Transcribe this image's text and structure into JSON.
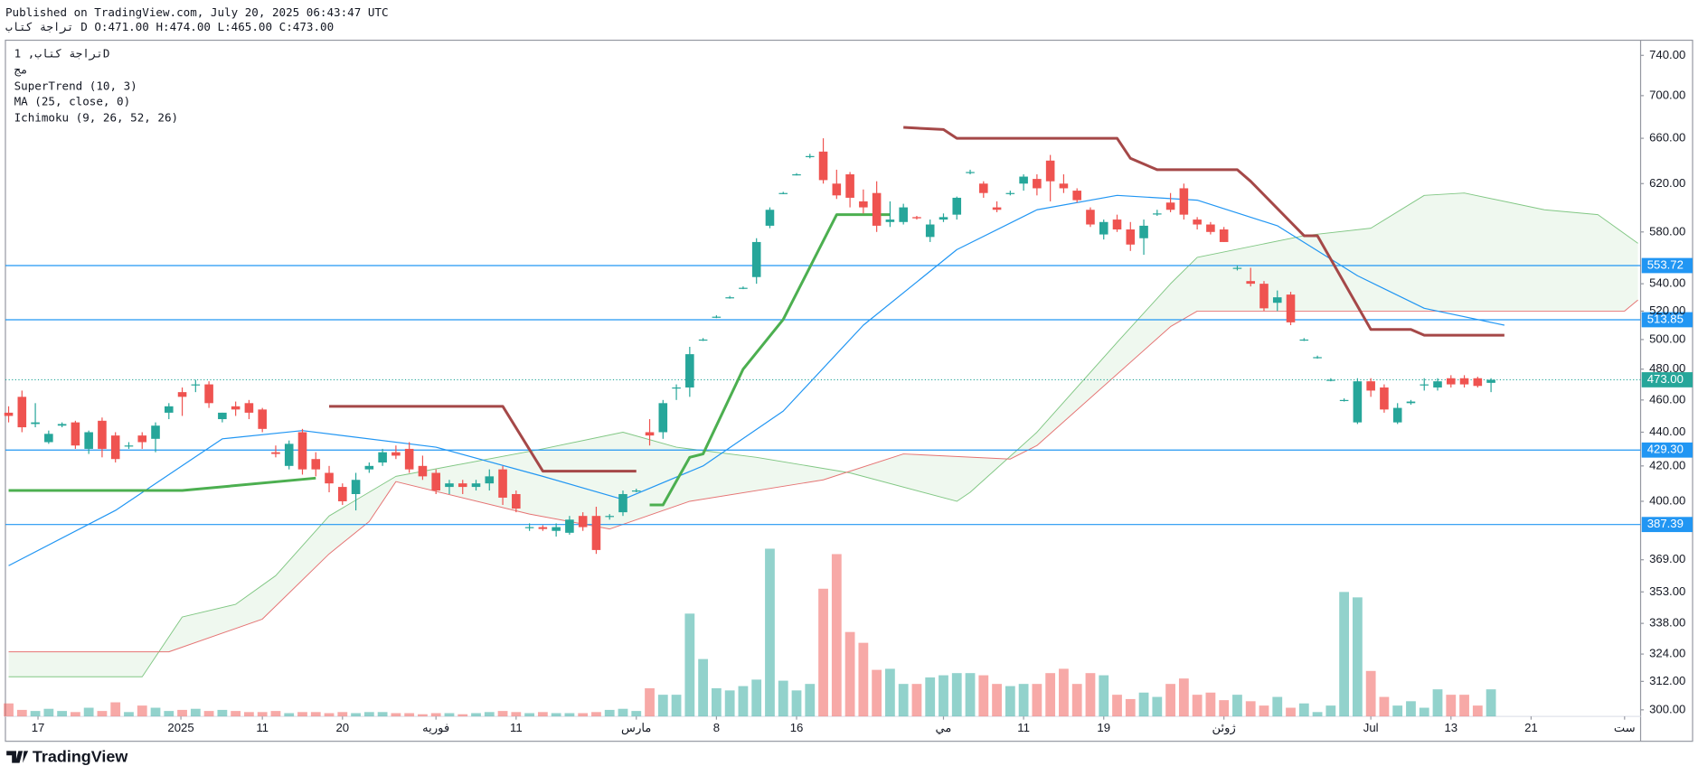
{
  "page": {
    "published": "Published on TradingView.com, July 20, 2025 06:43:47 UTC",
    "ohlc_header": [
      "تراجة كتاب",
      "D",
      "O:471.00",
      "H:474.00",
      "L:465.00",
      "C:473.00"
    ],
    "legend": [
      "تراجة كتاب, 1D",
      "مج",
      "SuperTrend (10, 3)",
      "MA (25, close, 0)",
      "Ichimoku (9, 26, 52, 26)"
    ],
    "logo": "TradingView"
  },
  "chart_data": {
    "type": "candlestick",
    "log_scale": true,
    "grid": false,
    "ylim": [
      297.3,
      755.6
    ],
    "yticks": [
      {
        "value": 740,
        "label": "740.00"
      },
      {
        "value": 700,
        "label": "700.00"
      },
      {
        "value": 660,
        "label": "660.00"
      },
      {
        "value": 620,
        "label": "620.00"
      },
      {
        "value": 580,
        "label": "580.00"
      },
      {
        "value": 540,
        "label": "540.00"
      },
      {
        "value": 520,
        "label": "520.00"
      },
      {
        "value": 500,
        "label": "500.00"
      },
      {
        "value": 480,
        "label": "480.00"
      },
      {
        "value": 460,
        "label": "460.00"
      },
      {
        "value": 440,
        "label": "440.00"
      },
      {
        "value": 420,
        "label": "420.00"
      },
      {
        "value": 400,
        "label": "400.00"
      },
      {
        "value": 369,
        "label": "369.00"
      },
      {
        "value": 353,
        "label": "353.00"
      },
      {
        "value": 338,
        "label": "338.00"
      },
      {
        "value": 324,
        "label": "324.00"
      },
      {
        "value": 312,
        "label": "312.00"
      },
      {
        "value": 300,
        "label": "300.00"
      }
    ],
    "xlim": [
      -0.24,
      122.2
    ],
    "xticks": [
      {
        "value": 2.2,
        "label": "17"
      },
      {
        "value": 12.9,
        "label": "2025"
      },
      {
        "value": 19,
        "label": "11"
      },
      {
        "value": 25,
        "label": "20"
      },
      {
        "value": 32,
        "label": "فوريه"
      },
      {
        "value": 38,
        "label": "11"
      },
      {
        "value": 47,
        "label": "مارس"
      },
      {
        "value": 53,
        "label": "8"
      },
      {
        "value": 59,
        "label": "16"
      },
      {
        "value": 70,
        "label": "مي"
      },
      {
        "value": 76,
        "label": "11"
      },
      {
        "value": 82,
        "label": "19"
      },
      {
        "value": 91,
        "label": "ژوئن"
      },
      {
        "value": 102,
        "label": "Jul"
      },
      {
        "value": 108,
        "label": "13"
      },
      {
        "value": 114,
        "label": "21"
      },
      {
        "value": 121,
        "label": "ست"
      }
    ],
    "up_color": "#26a69a",
    "down_color": "#ef5350",
    "ohlc": [
      [
        452,
        456,
        446,
        450
      ],
      [
        462,
        466,
        440,
        443
      ],
      [
        445,
        458,
        443,
        446
      ],
      [
        434,
        441,
        433,
        439
      ],
      [
        444,
        446,
        443,
        445
      ],
      [
        446,
        447,
        430,
        432
      ],
      [
        430,
        441,
        427,
        440
      ],
      [
        447,
        449,
        425,
        430
      ],
      [
        438,
        440,
        422,
        424
      ],
      [
        432,
        434,
        430,
        432
      ],
      [
        438,
        440,
        430,
        434
      ],
      [
        436,
        446,
        428,
        444
      ],
      [
        452,
        458,
        448,
        456
      ],
      [
        465,
        468,
        450,
        462
      ],
      [
        470,
        473,
        465,
        470
      ],
      [
        470,
        472,
        455,
        458
      ],
      [
        448,
        452,
        446,
        452
      ],
      [
        456,
        459,
        450,
        454
      ],
      [
        458,
        460,
        448,
        452
      ],
      [
        454,
        455,
        440,
        442
      ],
      [
        428,
        432,
        425,
        427
      ],
      [
        420,
        435,
        418,
        433
      ],
      [
        440,
        442,
        415,
        418
      ],
      [
        424,
        428,
        414,
        418
      ],
      [
        416,
        420,
        405,
        410
      ],
      [
        408,
        410,
        398,
        400
      ],
      [
        404,
        416,
        395,
        412
      ],
      [
        418,
        422,
        416,
        420
      ],
      [
        422,
        430,
        420,
        428
      ],
      [
        428,
        432,
        424,
        426
      ],
      [
        430,
        434,
        416,
        418
      ],
      [
        420,
        426,
        412,
        414
      ],
      [
        416,
        418,
        404,
        406
      ],
      [
        408,
        412,
        404,
        410
      ],
      [
        410,
        412,
        404,
        408
      ],
      [
        408,
        412,
        406,
        410
      ],
      [
        410,
        418,
        406,
        414
      ],
      [
        418,
        420,
        398,
        402
      ],
      [
        404,
        406,
        394,
        396
      ],
      [
        386,
        388,
        384,
        386
      ],
      [
        386,
        387,
        384,
        385
      ],
      [
        384,
        388,
        381,
        386
      ],
      [
        383,
        392,
        382,
        390
      ],
      [
        392,
        394,
        384,
        386
      ],
      [
        392,
        397,
        372,
        374
      ],
      [
        392,
        393,
        390,
        392
      ],
      [
        394,
        406,
        392,
        404
      ],
      [
        406,
        407,
        405,
        406
      ],
      [
        440,
        448,
        432,
        438
      ],
      [
        440,
        460,
        436,
        458
      ],
      [
        468,
        470,
        460,
        468
      ],
      [
        468,
        495,
        462,
        490
      ],
      [
        500,
        501,
        499,
        500
      ],
      [
        516,
        517,
        515,
        516
      ],
      [
        530,
        531,
        529,
        530
      ],
      [
        537,
        538,
        536,
        537
      ],
      [
        545,
        575,
        540,
        572
      ],
      [
        585,
        600,
        583,
        598
      ],
      [
        612,
        613,
        611,
        612
      ],
      [
        628,
        629,
        627,
        628
      ],
      [
        644,
        646,
        642,
        644
      ],
      [
        648,
        660,
        620,
        623
      ],
      [
        620,
        632,
        607,
        610
      ],
      [
        628,
        630,
        600,
        608
      ],
      [
        605,
        615,
        595,
        600
      ],
      [
        612,
        622,
        580,
        585
      ],
      [
        588,
        605,
        584,
        590
      ],
      [
        588,
        603,
        586,
        600
      ],
      [
        592,
        593,
        590,
        591
      ],
      [
        576,
        590,
        572,
        586
      ],
      [
        590,
        595,
        588,
        592
      ],
      [
        594,
        609,
        590,
        608
      ],
      [
        630,
        632,
        628,
        630
      ],
      [
        620,
        622,
        608,
        612
      ],
      [
        600,
        605,
        596,
        598
      ],
      [
        612,
        614,
        610,
        612
      ],
      [
        620,
        628,
        614,
        626
      ],
      [
        624,
        628,
        610,
        616
      ],
      [
        640,
        645,
        605,
        622
      ],
      [
        620,
        628,
        612,
        616
      ],
      [
        614,
        616,
        604,
        606
      ],
      [
        598,
        600,
        584,
        586
      ],
      [
        578,
        590,
        574,
        588
      ],
      [
        590,
        594,
        580,
        582
      ],
      [
        582,
        588,
        565,
        570
      ],
      [
        575,
        590,
        562,
        585
      ],
      [
        595,
        598,
        593,
        595
      ],
      [
        604,
        612,
        596,
        598
      ],
      [
        616,
        620,
        590,
        594
      ],
      [
        590,
        592,
        582,
        586
      ],
      [
        586,
        588,
        578,
        580
      ],
      [
        582,
        584,
        572,
        572
      ],
      [
        552,
        554,
        550,
        552
      ],
      [
        542,
        552,
        538,
        540
      ],
      [
        540,
        542,
        520,
        522
      ],
      [
        526,
        535,
        520,
        530
      ],
      [
        532,
        534,
        510,
        512
      ],
      [
        500,
        501,
        499,
        500
      ],
      [
        488,
        489,
        487,
        488
      ],
      [
        473,
        474,
        472,
        473
      ],
      [
        460,
        461,
        459,
        460
      ],
      [
        446,
        474,
        445,
        472
      ],
      [
        472,
        474,
        462,
        466
      ],
      [
        468,
        470,
        452,
        454
      ],
      [
        446,
        458,
        445,
        455
      ],
      [
        458,
        460,
        457,
        459
      ],
      [
        470,
        474,
        466,
        470
      ],
      [
        468,
        474,
        466,
        472
      ],
      [
        474,
        476,
        468,
        470
      ],
      [
        474,
        476,
        468,
        470
      ],
      [
        474,
        475,
        468,
        469
      ],
      [
        471,
        474,
        465,
        473
      ]
    ],
    "volume": [
      12,
      6,
      5,
      7,
      5,
      4,
      8,
      5,
      13,
      4,
      10,
      8,
      5,
      6,
      7,
      5,
      6,
      5,
      4,
      4,
      5,
      3,
      4,
      4,
      3,
      4,
      3,
      4,
      4,
      3,
      3,
      2,
      3,
      3,
      2,
      3,
      4,
      5,
      4,
      3,
      4,
      3,
      3,
      3,
      4,
      6,
      7,
      5,
      26,
      20,
      20,
      95,
      53,
      26,
      24,
      28,
      34,
      155,
      33,
      24,
      30,
      118,
      150,
      78,
      68,
      43,
      44,
      30,
      30,
      36,
      38,
      40,
      40,
      38,
      30,
      28,
      30,
      30,
      40,
      44,
      30,
      40,
      38,
      20,
      16,
      22,
      18,
      30,
      35,
      20,
      22,
      15,
      20,
      14,
      10,
      18,
      8,
      12,
      4,
      10,
      115,
      110,
      42,
      18,
      10,
      14,
      8,
      25,
      20,
      20,
      10,
      25
    ],
    "supertrend_up": {
      "color": "#4caf50",
      "x": [
        0,
        13,
        23,
        24,
        48,
        49,
        51,
        52,
        55,
        58,
        62,
        66
      ],
      "values": [
        406,
        406,
        413,
        null,
        398,
        398,
        425,
        427,
        480,
        514,
        594,
        594
      ]
    },
    "supertrend_down": {
      "color": "#a54848",
      "x": [
        24,
        37,
        40,
        47,
        48,
        67,
        70,
        71,
        83,
        84,
        86,
        92,
        93,
        97,
        98,
        102,
        105,
        106,
        112
      ],
      "values": [
        456,
        456,
        417,
        417,
        null,
        670,
        668,
        660,
        660,
        642,
        632,
        632,
        622,
        577,
        577,
        507,
        507,
        503,
        503
      ]
    },
    "ma": {
      "color": "#2196f3",
      "x": [
        0,
        8,
        16,
        22,
        32,
        40,
        46,
        52,
        58,
        64,
        71,
        77,
        83,
        89,
        95,
        101,
        106,
        112
      ],
      "values": [
        366,
        395,
        436,
        441,
        431,
        414,
        401,
        420,
        453,
        510,
        566,
        598,
        610,
        606,
        585,
        546,
        522,
        510
      ]
    },
    "ichimoku_span_a": {
      "color": "#81c784",
      "x": [
        0,
        10,
        13,
        17,
        20,
        24,
        29,
        40,
        46,
        50,
        56,
        63,
        71,
        72,
        77,
        83,
        87,
        89,
        97,
        102,
        106,
        109,
        115,
        119,
        122
      ],
      "values": [
        314,
        314,
        341,
        347,
        361,
        392,
        414,
        430,
        440,
        431,
        425,
        416,
        400,
        405,
        440,
        498,
        540,
        560,
        577,
        583,
        610,
        612,
        598,
        594,
        571
      ]
    },
    "ichimoku_span_b": {
      "color": "#e57373",
      "x": [
        0,
        10,
        12,
        19,
        24,
        27,
        29,
        39,
        45,
        51,
        61,
        67,
        75,
        77,
        87,
        89,
        121,
        122
      ],
      "values": [
        325,
        325,
        325,
        340,
        372,
        389,
        411,
        393,
        385,
        400,
        412,
        427,
        424,
        432,
        509,
        520,
        520,
        528
      ]
    },
    "cloud_color": "#4caf50",
    "level_color": "#2196f3",
    "levels": [
      {
        "value": 553.72,
        "label": "553.72"
      },
      {
        "value": 513.85,
        "label": "513.85"
      },
      {
        "value": 429.3,
        "label": "429.30"
      },
      {
        "value": 387.39,
        "label": "387.39"
      }
    ],
    "last_price": {
      "value": 473,
      "label": "473.00"
    }
  }
}
